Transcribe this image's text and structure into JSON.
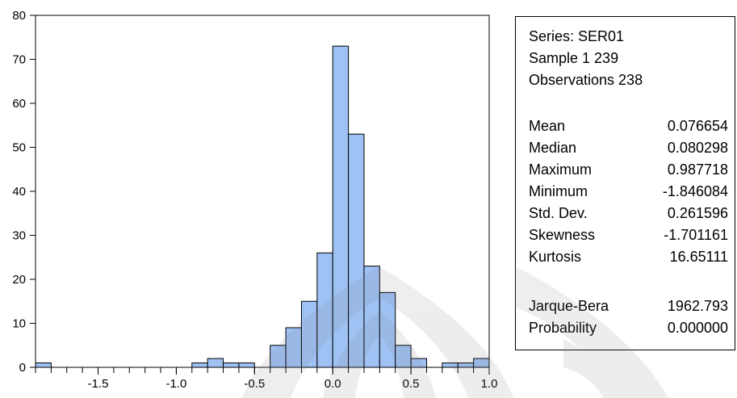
{
  "chart_data": {
    "type": "bar",
    "subtype": "histogram",
    "bin_width": 0.1,
    "bins": [
      {
        "x0": -1.9,
        "x1": -1.8,
        "count": 1
      },
      {
        "x0": -0.9,
        "x1": -0.8,
        "count": 1
      },
      {
        "x0": -0.8,
        "x1": -0.7,
        "count": 2
      },
      {
        "x0": -0.7,
        "x1": -0.6,
        "count": 1
      },
      {
        "x0": -0.6,
        "x1": -0.5,
        "count": 1
      },
      {
        "x0": -0.4,
        "x1": -0.3,
        "count": 5
      },
      {
        "x0": -0.3,
        "x1": -0.2,
        "count": 9
      },
      {
        "x0": -0.2,
        "x1": -0.1,
        "count": 15
      },
      {
        "x0": -0.1,
        "x1": 0.0,
        "count": 26
      },
      {
        "x0": 0.0,
        "x1": 0.1,
        "count": 73
      },
      {
        "x0": 0.1,
        "x1": 0.2,
        "count": 53
      },
      {
        "x0": 0.2,
        "x1": 0.3,
        "count": 23
      },
      {
        "x0": 0.3,
        "x1": 0.4,
        "count": 17
      },
      {
        "x0": 0.4,
        "x1": 0.5,
        "count": 5
      },
      {
        "x0": 0.5,
        "x1": 0.6,
        "count": 2
      },
      {
        "x0": 0.7,
        "x1": 0.8,
        "count": 1
      },
      {
        "x0": 0.8,
        "x1": 0.9,
        "count": 1
      },
      {
        "x0": 0.9,
        "x1": 1.0,
        "count": 2
      }
    ],
    "xlim": [
      -1.9,
      1.0
    ],
    "ylim": [
      0,
      80
    ],
    "x_ticks": [
      "-1.5",
      "-1.0",
      "-0.5",
      "0.0",
      "0.5",
      "1.0"
    ],
    "x_tick_values": [
      -1.5,
      -1.0,
      -0.5,
      0.0,
      0.5,
      1.0
    ],
    "y_ticks": [
      "0",
      "10",
      "20",
      "30",
      "40",
      "50",
      "60",
      "70",
      "80"
    ],
    "y_tick_values": [
      0,
      10,
      20,
      30,
      40,
      50,
      60,
      70,
      80
    ],
    "grid": false,
    "bar_color": "#9fc2f5",
    "bar_edge_color": "#000000"
  },
  "stats": {
    "series": "Series: SER01",
    "sample": "Sample 1 239",
    "observations": "Observations 238",
    "rows": [
      {
        "label": "Mean",
        "value": "0.076654"
      },
      {
        "label": "Median",
        "value": "0.080298"
      },
      {
        "label": "Maximum",
        "value": "0.987718"
      },
      {
        "label": "Minimum",
        "value": "-1.846084"
      },
      {
        "label": "Std. Dev.",
        "value": "0.261596"
      },
      {
        "label": "Skewness",
        "value": "-1.701161"
      },
      {
        "label": "Kurtosis",
        "value": "16.65111"
      }
    ],
    "test_rows": [
      {
        "label": "Jarque-Bera",
        "value": "1962.793"
      },
      {
        "label": "Probability",
        "value": "0.000000"
      }
    ]
  }
}
